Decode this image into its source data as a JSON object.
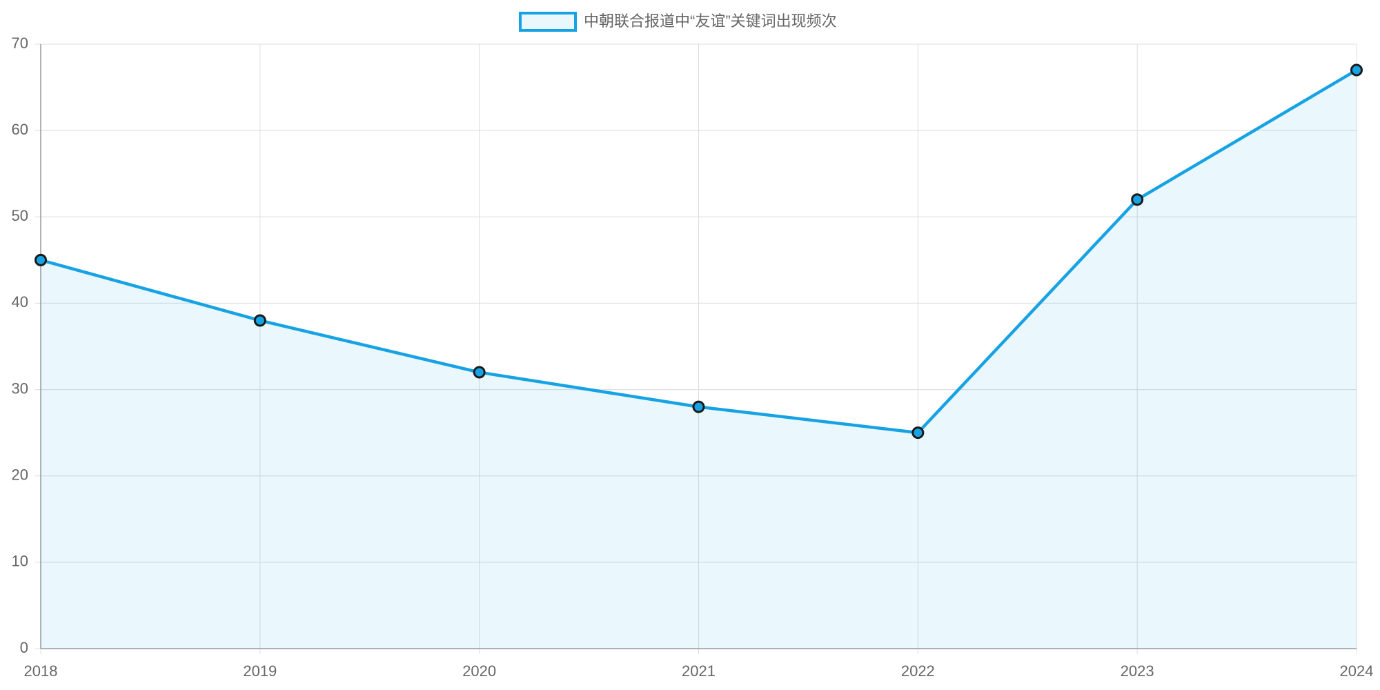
{
  "chart_data": {
    "type": "line",
    "categories": [
      "2018",
      "2019",
      "2020",
      "2021",
      "2022",
      "2023",
      "2024"
    ],
    "series": [
      {
        "name": "中朝联合报道中“友谊”关键词出现频次",
        "color": "#17a3e3",
        "values": [
          45,
          38,
          32,
          28,
          25,
          52,
          67
        ]
      }
    ],
    "ylim": [
      0,
      70
    ],
    "yticks": [
      0,
      10,
      20,
      30,
      40,
      50,
      60,
      70
    ],
    "grid": true,
    "legend": "top"
  }
}
